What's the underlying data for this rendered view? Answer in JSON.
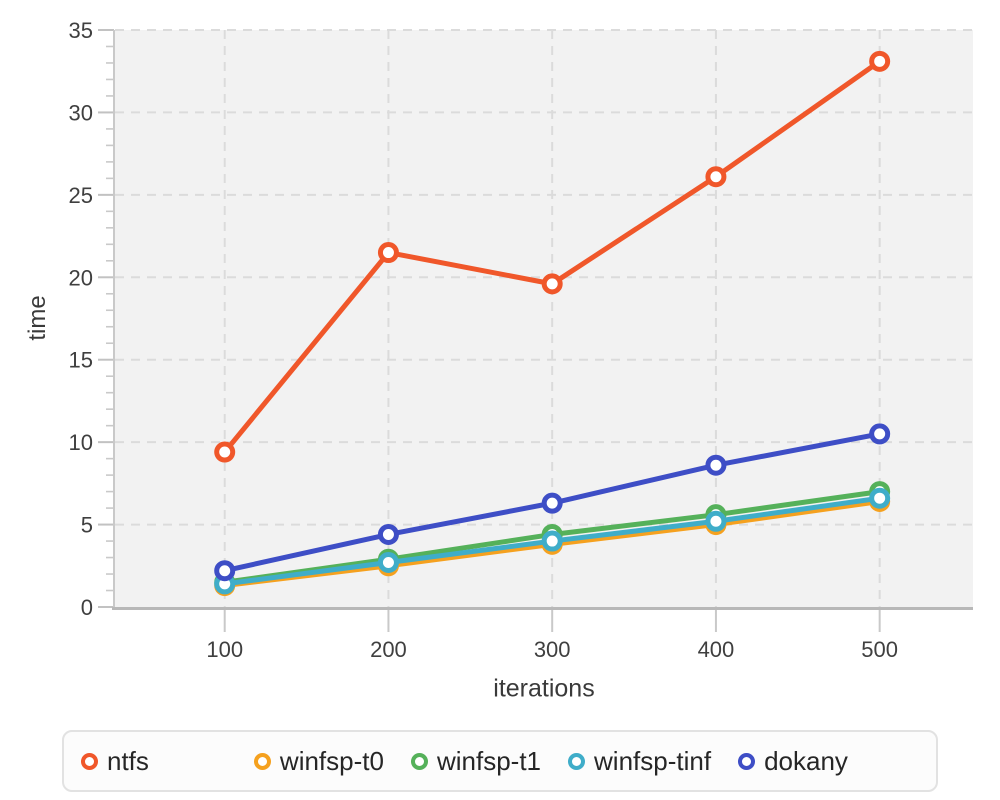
{
  "chart_data": {
    "type": "line",
    "title": "",
    "xlabel": "iterations",
    "ylabel": "time",
    "x": [
      100,
      200,
      300,
      400,
      500
    ],
    "x_ticks": [
      100,
      200,
      300,
      400,
      500
    ],
    "y_ticks": [
      0,
      5,
      10,
      15,
      20,
      25,
      30,
      35
    ],
    "y_minor_step": 1,
    "xlim": [
      33,
      557
    ],
    "ylim": [
      0,
      35
    ],
    "grid": "dashed",
    "legend_position": "bottom",
    "plot_background": "#f2f2f2",
    "grid_color": "#dbdbdb",
    "axis_color": "#b8b8b8",
    "tick_label_color": "#3f3f3f",
    "marker_style": "open-circle",
    "series": [
      {
        "name": "ntfs",
        "color": "#F0572A",
        "values": [
          9.4,
          21.5,
          19.6,
          26.1,
          33.1
        ]
      },
      {
        "name": "winfsp-t0",
        "color": "#F5A11F",
        "values": [
          1.3,
          2.5,
          3.8,
          5.0,
          6.4
        ]
      },
      {
        "name": "winfsp-t1",
        "color": "#55B15A",
        "values": [
          1.5,
          2.9,
          4.4,
          5.6,
          7.0
        ]
      },
      {
        "name": "winfsp-tinf",
        "color": "#3FADC9",
        "values": [
          1.4,
          2.7,
          4.0,
          5.2,
          6.6
        ]
      },
      {
        "name": "dokany",
        "color": "#3E4EC6",
        "values": [
          2.2,
          4.4,
          6.3,
          8.6,
          10.5
        ]
      }
    ]
  }
}
